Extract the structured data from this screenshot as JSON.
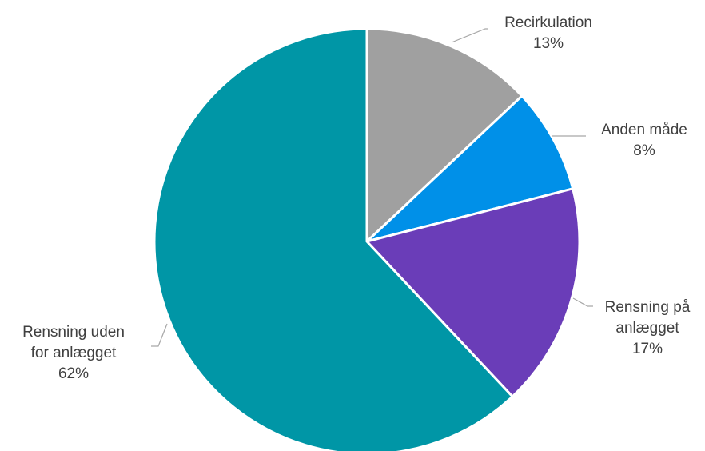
{
  "chart_data": {
    "type": "pie",
    "title": "",
    "slices": [
      {
        "label": [
          "Recirkulation"
        ],
        "value": 13,
        "value_label": "13%",
        "color": "#a0a0a0"
      },
      {
        "label": [
          "Anden måde"
        ],
        "value": 8,
        "value_label": "8%",
        "color": "#0090e8"
      },
      {
        "label": [
          "Rensning på",
          "anlægget"
        ],
        "value": 17,
        "value_label": "17%",
        "color": "#6a3db8"
      },
      {
        "label": [
          "Rensning uden",
          "for anlægget"
        ],
        "value": 62,
        "value_label": "62%",
        "color": "#0096a6"
      }
    ],
    "start_angle_deg": 0,
    "direction": "clockwise",
    "legend": "none",
    "data_labels": "outside with leader lines"
  }
}
